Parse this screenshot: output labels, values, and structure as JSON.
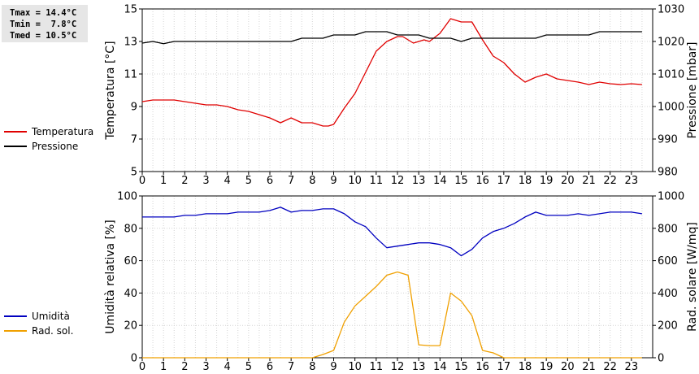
{
  "stats": {
    "tmax": "Tmax = 14.4°C",
    "tmin": "Tmin =  7.8°C",
    "tmed": "Tmed = 10.5°C"
  },
  "chart_data": [
    {
      "type": "line",
      "xlim": [
        0,
        24
      ],
      "xticks": [
        0,
        1,
        2,
        3,
        4,
        5,
        6,
        7,
        8,
        9,
        10,
        11,
        12,
        13,
        14,
        15,
        16,
        17,
        18,
        19,
        20,
        21,
        22,
        23
      ],
      "grid": true,
      "legend_placement": "left",
      "y_left": {
        "label": "Temperatura [°C]",
        "lim": [
          5,
          15
        ],
        "ticks": [
          5,
          7,
          9,
          11,
          13,
          15
        ]
      },
      "y_right": {
        "label": "Pressione [mbar]",
        "lim": [
          980,
          1030
        ],
        "ticks": [
          980,
          990,
          1000,
          1010,
          1020,
          1030
        ]
      },
      "series": [
        {
          "name": "Temperatura",
          "axis": "left",
          "color": "#e00000",
          "x": [
            0,
            0.5,
            1,
            1.5,
            2,
            2.5,
            3,
            3.5,
            4,
            4.5,
            5,
            5.5,
            6,
            6.25,
            6.5,
            6.75,
            7,
            7.25,
            7.5,
            7.75,
            8,
            8.25,
            8.5,
            8.75,
            9,
            9.5,
            10,
            10.5,
            11,
            11.5,
            12,
            12.25,
            12.5,
            12.75,
            13,
            13.25,
            13.5,
            14,
            14.5,
            15,
            15.5,
            16,
            16.5,
            17,
            17.5,
            18,
            18.5,
            19,
            19.5,
            20,
            20.5,
            21,
            21.5,
            22,
            22.5,
            23,
            23.5
          ],
          "y": [
            9.3,
            9.4,
            9.4,
            9.4,
            9.3,
            9.2,
            9.1,
            9.1,
            9.0,
            8.8,
            8.7,
            8.5,
            8.3,
            8.15,
            8.0,
            8.15,
            8.3,
            8.15,
            8.0,
            8.0,
            8.0,
            7.9,
            7.8,
            7.8,
            7.9,
            8.9,
            9.8,
            11.1,
            12.4,
            13.0,
            13.3,
            13.3,
            13.1,
            12.9,
            13.0,
            13.1,
            13.0,
            13.5,
            14.4,
            14.2,
            14.2,
            13.1,
            12.1,
            11.7,
            11.0,
            10.5,
            10.8,
            11.0,
            10.7,
            10.6,
            10.5,
            10.35,
            10.5,
            10.4,
            10.35,
            10.4,
            10.35
          ]
        },
        {
          "name": "Pressione",
          "axis": "right",
          "color": "#000000",
          "x": [
            0,
            0.5,
            1,
            1.5,
            2,
            2.5,
            3,
            3.5,
            4,
            4.5,
            5,
            5.5,
            6,
            6.5,
            7,
            7.5,
            8,
            8.5,
            9,
            9.5,
            10,
            10.5,
            11,
            11.5,
            12,
            12.5,
            13,
            13.5,
            14,
            14.5,
            15,
            15.5,
            16,
            16.5,
            17,
            17.5,
            18,
            18.5,
            19,
            19.5,
            20,
            20.5,
            21,
            21.5,
            22,
            22.5,
            23,
            23.5
          ],
          "y": [
            1019.5,
            1020,
            1019.3,
            1020,
            1020,
            1020,
            1020,
            1020,
            1020,
            1020,
            1020,
            1020,
            1020,
            1020,
            1020,
            1021,
            1021,
            1021,
            1022,
            1022,
            1022,
            1023,
            1023,
            1023,
            1022,
            1022,
            1022,
            1021,
            1021,
            1021,
            1020,
            1021,
            1021,
            1021,
            1021,
            1021,
            1021,
            1021,
            1022,
            1022,
            1022,
            1022,
            1022,
            1023,
            1023,
            1023,
            1023,
            1023
          ]
        }
      ]
    },
    {
      "type": "line",
      "xlim": [
        0,
        24
      ],
      "xticks": [
        0,
        1,
        2,
        3,
        4,
        5,
        6,
        7,
        8,
        9,
        10,
        11,
        12,
        13,
        14,
        15,
        16,
        17,
        18,
        19,
        20,
        21,
        22,
        23
      ],
      "grid": true,
      "legend_placement": "left",
      "y_left": {
        "label": "Umidità relativa [%]",
        "lim": [
          0,
          100
        ],
        "ticks": [
          0,
          20,
          40,
          60,
          80,
          100
        ]
      },
      "y_right": {
        "label": "Rad. solare [W/mq]",
        "lim": [
          0,
          1000
        ],
        "ticks": [
          0,
          200,
          400,
          600,
          800,
          1000
        ]
      },
      "series": [
        {
          "name": "Umidità",
          "axis": "left",
          "color": "#0000c0",
          "x": [
            0,
            0.5,
            1,
            1.5,
            2,
            2.5,
            3,
            3.5,
            4,
            4.5,
            5,
            5.5,
            6,
            6.5,
            7,
            7.5,
            8,
            8.5,
            9,
            9.5,
            10,
            10.5,
            11,
            11.5,
            12,
            12.5,
            13,
            13.5,
            14,
            14.5,
            15,
            15.5,
            16,
            16.5,
            17,
            17.5,
            18,
            18.5,
            19,
            19.5,
            20,
            20.5,
            21,
            21.5,
            22,
            22.5,
            23,
            23.5
          ],
          "y": [
            87,
            87,
            87,
            87,
            88,
            88,
            89,
            89,
            89,
            90,
            90,
            90,
            91,
            93,
            90,
            91,
            91,
            92,
            92,
            89,
            84,
            81,
            74,
            68,
            69,
            70,
            71,
            71,
            70,
            68,
            63,
            67,
            74,
            78,
            80,
            83,
            87,
            90,
            88,
            88,
            88,
            89,
            88,
            89,
            90,
            90,
            90,
            89
          ]
        },
        {
          "name": "Rad. sol.",
          "axis": "right",
          "color": "#f0a000",
          "x": [
            0,
            0.5,
            1,
            1.5,
            2,
            2.5,
            3,
            3.5,
            4,
            4.5,
            5,
            5.5,
            6,
            6.5,
            7,
            7.5,
            8,
            8.5,
            9,
            9.5,
            10,
            10.5,
            11,
            11.5,
            12,
            12.5,
            13,
            13.5,
            14,
            14.5,
            15,
            15.5,
            16,
            16.5,
            17,
            17.5,
            18,
            18.5,
            19,
            19.5,
            20,
            20.5,
            21,
            21.5,
            22,
            22.5,
            23,
            23.5
          ],
          "y": [
            0,
            0,
            0,
            0,
            0,
            0,
            0,
            0,
            0,
            0,
            0,
            0,
            0,
            0,
            0,
            0,
            0,
            20,
            45,
            220,
            320,
            380,
            440,
            510,
            530,
            510,
            80,
            75,
            75,
            400,
            350,
            260,
            45,
            30,
            0,
            0,
            0,
            0,
            0,
            0,
            0,
            0,
            0,
            0,
            0,
            0,
            0,
            0
          ]
        }
      ]
    }
  ]
}
